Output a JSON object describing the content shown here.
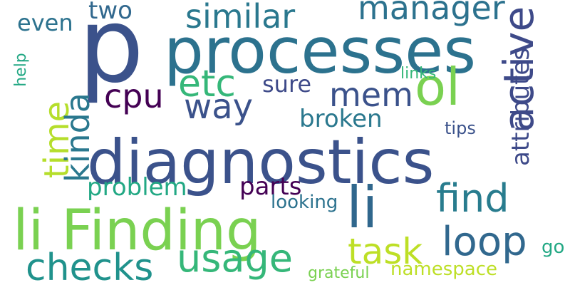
{
  "word_cloud": {
    "background": "#ffffff",
    "words": [
      {
        "text": "p",
        "color": "#3b528b"
      },
      {
        "text": "processes",
        "color": "#2c728e"
      },
      {
        "text": "diagnostics",
        "color": "#3b528b"
      },
      {
        "text": "li Finding",
        "color": "#7ad151"
      },
      {
        "text": "li",
        "color": "#30678d"
      },
      {
        "text": "ol",
        "color": "#7ad151"
      },
      {
        "text": "active",
        "color": "#3e4a89"
      },
      {
        "text": "loop",
        "color": "#31688e"
      },
      {
        "text": "find",
        "color": "#287c8e"
      },
      {
        "text": "checks",
        "color": "#20928c"
      },
      {
        "text": "usage",
        "color": "#35b779"
      },
      {
        "text": "task",
        "color": "#bddf26"
      },
      {
        "text": "similar",
        "color": "#2a788e"
      },
      {
        "text": "manager",
        "color": "#2c728e"
      },
      {
        "text": "cpu",
        "color": "#440154"
      },
      {
        "text": "way",
        "color": "#3b528b"
      },
      {
        "text": "etc",
        "color": "#35b779"
      },
      {
        "text": "mem",
        "color": "#3b528b"
      },
      {
        "text": "time",
        "color": "#b5de2b"
      },
      {
        "text": "kinda",
        "color": "#2a788e"
      },
      {
        "text": "problem",
        "color": "#22a884"
      },
      {
        "text": "broken",
        "color": "#2a788e"
      },
      {
        "text": "parts",
        "color": "#440154"
      },
      {
        "text": "two",
        "color": "#31688e"
      },
      {
        "text": "even",
        "color": "#2c728e"
      },
      {
        "text": "sure",
        "color": "#3e4a89"
      },
      {
        "text": "attributes",
        "color": "#3e4a89"
      },
      {
        "text": "looking",
        "color": "#2c728e"
      },
      {
        "text": "namespace",
        "color": "#bddf26"
      },
      {
        "text": "grateful",
        "color": "#7ad151"
      },
      {
        "text": "tips",
        "color": "#3b528b"
      },
      {
        "text": "links",
        "color": "#35b779"
      },
      {
        "text": "help",
        "color": "#22a884"
      },
      {
        "text": "go",
        "color": "#22a884"
      }
    ]
  }
}
